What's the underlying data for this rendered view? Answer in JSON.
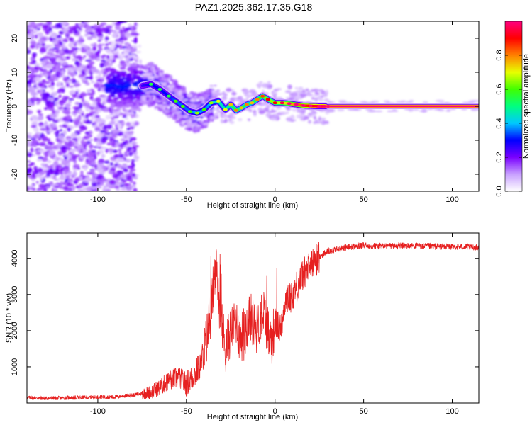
{
  "title": "PAZ1.2025.362.17.35.G18",
  "chart_data": [
    {
      "type": "heatmap",
      "name": "spectrogram",
      "xlabel": "Height of straight line (km)",
      "ylabel": "Frequency (Hz)",
      "xlim": [
        -140,
        115
      ],
      "ylim": [
        -25,
        25
      ],
      "xticks": [
        -100,
        -50,
        0,
        50,
        100
      ],
      "yticks": [
        -20,
        -10,
        0,
        10,
        20
      ],
      "xtick_labels": [
        "-100",
        "-50",
        "0",
        "50",
        "100"
      ],
      "ytick_labels": [
        "-20",
        "-10",
        "0",
        "10",
        "20"
      ],
      "colorbar": {
        "label": "Normalized spectral amplitude",
        "range": [
          0,
          1
        ],
        "ticks": [
          0.0,
          0.2,
          0.4,
          0.6,
          0.8
        ],
        "tick_labels": [
          "0.0",
          "0.2",
          "0.4",
          "0.6",
          "0.8"
        ],
        "colors": [
          "#ffffff",
          "#c8a0ff",
          "#7a00ff",
          "#0000ff",
          "#00c8ff",
          "#00ff80",
          "#40ff00",
          "#e8ff00",
          "#ff8000",
          "#ff0000",
          "#ff0080"
        ]
      },
      "ridge": {
        "x": [
          -75,
          -70,
          -65,
          -60,
          -56,
          -52,
          -48,
          -44,
          -40,
          -36,
          -32,
          -28,
          -25,
          -22,
          -19,
          -16,
          -13,
          -10,
          -7,
          -4,
          0,
          4,
          8,
          12,
          16,
          20,
          25,
          30,
          115
        ],
        "freq": [
          6,
          6.5,
          5,
          3,
          1.5,
          0,
          -1.5,
          -2,
          -1,
          1,
          1.5,
          -1,
          0.5,
          -1.2,
          -0.5,
          0.5,
          1,
          2,
          3,
          2,
          1,
          1,
          0.8,
          0.5,
          0.2,
          0.1,
          0,
          0,
          0
        ],
        "amplitude": [
          0.25,
          0.3,
          0.3,
          0.3,
          0.35,
          0.35,
          0.35,
          0.4,
          0.35,
          0.4,
          0.45,
          0.45,
          0.5,
          0.55,
          0.5,
          0.55,
          0.5,
          0.55,
          0.6,
          0.65,
          0.65,
          0.7,
          0.75,
          0.8,
          0.85,
          0.9,
          0.95,
          1.0,
          1.0
        ]
      }
    },
    {
      "type": "line",
      "name": "snr",
      "xlabel": "Height of straight line (km)",
      "ylabel": "SNR (10 * v/v)",
      "xlim": [
        -140,
        115
      ],
      "ylim": [
        0,
        4700
      ],
      "xticks": [
        -100,
        -50,
        0,
        50,
        100
      ],
      "yticks": [
        1000,
        2000,
        3000,
        4000
      ],
      "xtick_labels": [
        "-100",
        "-50",
        "0",
        "50",
        "100"
      ],
      "ytick_labels": [
        "1000",
        "2000",
        "3000",
        "4000"
      ],
      "color": "#e62020",
      "series": [
        {
          "name": "SNR",
          "x": [
            -140,
            -130,
            -120,
            -110,
            -100,
            -90,
            -80,
            -75,
            -70,
            -65,
            -60,
            -55,
            -50,
            -45,
            -42,
            -40,
            -37,
            -35,
            -33,
            -31,
            -28,
            -25,
            -22,
            -20,
            -17,
            -15,
            -12,
            -10,
            -7,
            -5,
            -2,
            0,
            3,
            6,
            10,
            15,
            20,
            25,
            30,
            35,
            40,
            45,
            50,
            60,
            70,
            80,
            90,
            100,
            110,
            115
          ],
          "y": [
            150,
            130,
            140,
            150,
            160,
            170,
            220,
            260,
            300,
            420,
            620,
            700,
            520,
            800,
            1100,
            1400,
            2200,
            3100,
            3700,
            2500,
            1500,
            2000,
            2300,
            1800,
            1900,
            2500,
            2200,
            2000,
            2600,
            2200,
            1700,
            2200,
            2100,
            2800,
            3000,
            3500,
            3800,
            4050,
            4200,
            4250,
            4300,
            4330,
            4350,
            4340,
            4350,
            4340,
            4330,
            4320,
            4320,
            4300
          ]
        }
      ]
    }
  ]
}
